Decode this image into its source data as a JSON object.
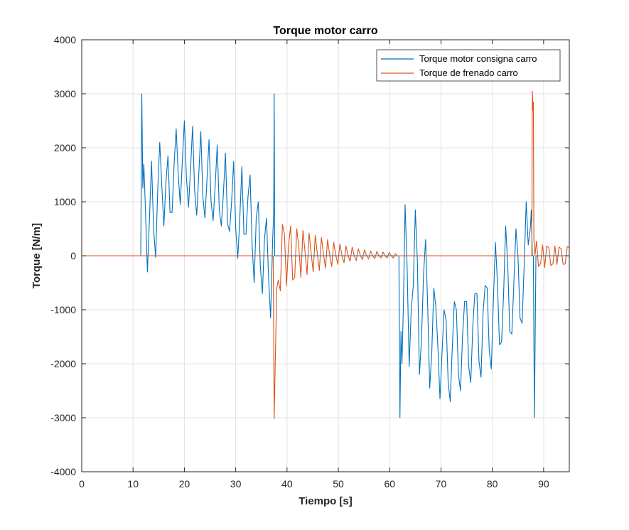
{
  "chart_data": {
    "type": "line",
    "title": "Torque motor carro",
    "xlabel": "Tiempo [s]",
    "ylabel": "Torque [N/m]",
    "xlim": [
      0,
      95
    ],
    "ylim": [
      -4000,
      4000
    ],
    "xticks": [
      0,
      10,
      20,
      30,
      40,
      50,
      60,
      70,
      80,
      90
    ],
    "yticks": [
      -4000,
      -3000,
      -2000,
      -1000,
      0,
      1000,
      2000,
      3000,
      4000
    ],
    "grid": true,
    "legend_position": "top-right",
    "series": [
      {
        "name": "Torque motor consigna carro",
        "color": "#0072BD",
        "x": [
          0,
          11.5,
          11.7,
          11.9,
          12.1,
          12.4,
          12.8,
          13.2,
          13.6,
          14.0,
          14.4,
          14.8,
          15.2,
          15.6,
          16.0,
          16.4,
          16.8,
          17.2,
          17.6,
          18.0,
          18.4,
          18.8,
          19.2,
          19.6,
          20.0,
          20.4,
          20.8,
          21.2,
          21.6,
          22.0,
          22.4,
          22.8,
          23.2,
          23.6,
          24.0,
          24.4,
          24.8,
          25.2,
          25.6,
          26.0,
          26.4,
          26.8,
          27.2,
          27.6,
          28.0,
          28.4,
          28.8,
          29.2,
          29.6,
          30.0,
          30.4,
          30.8,
          31.2,
          31.6,
          32.0,
          32.4,
          32.8,
          33.2,
          33.6,
          34.0,
          34.4,
          34.8,
          35.2,
          35.6,
          36.0,
          36.4,
          36.8,
          37.2,
          37.4,
          37.5,
          37.6,
          37.8,
          38.0,
          45,
          55,
          61.8,
          62.0,
          62.2,
          62.4,
          62.7,
          63.0,
          63.4,
          63.8,
          64.2,
          64.6,
          65.0,
          65.4,
          65.8,
          66.2,
          66.6,
          67.0,
          67.4,
          67.8,
          68.2,
          68.6,
          69.0,
          69.4,
          69.8,
          70.2,
          70.6,
          71.0,
          71.4,
          71.8,
          72.2,
          72.6,
          73.0,
          73.4,
          73.8,
          74.2,
          74.6,
          75.0,
          75.4,
          75.8,
          76.2,
          76.6,
          77.0,
          77.4,
          77.8,
          78.2,
          78.6,
          79.0,
          79.4,
          79.8,
          80.2,
          80.6,
          81.0,
          81.4,
          81.8,
          82.2,
          82.6,
          83.0,
          83.4,
          83.8,
          84.2,
          84.6,
          85.0,
          85.4,
          85.8,
          86.2,
          86.6,
          87.0,
          87.4,
          87.6,
          87.8,
          87.9,
          88.0,
          88.2,
          88.5,
          95
        ],
        "y": [
          0,
          0,
          3000,
          1250,
          1700,
          900,
          -300,
          700,
          1750,
          500,
          -30,
          1200,
          2100,
          1300,
          550,
          1350,
          1850,
          800,
          800,
          1700,
          2350,
          1500,
          950,
          1750,
          2500,
          1450,
          900,
          1600,
          2400,
          1200,
          750,
          1500,
          2300,
          1100,
          700,
          1400,
          2150,
          1000,
          650,
          1300,
          2050,
          850,
          550,
          1150,
          1900,
          600,
          450,
          1000,
          1750,
          500,
          -50,
          700,
          1650,
          400,
          400,
          1100,
          1500,
          200,
          -500,
          700,
          1000,
          -200,
          -700,
          300,
          700,
          -400,
          -1150,
          300,
          800,
          3000,
          0,
          0,
          0,
          0,
          0,
          0,
          -3000,
          -1400,
          -2000,
          -800,
          950,
          -200,
          -2050,
          -1000,
          -550,
          850,
          -100,
          -2200,
          -1550,
          -350,
          300,
          -900,
          -2450,
          -1800,
          -600,
          -950,
          -1700,
          -2650,
          -1800,
          -1000,
          -1200,
          -2350,
          -2700,
          -1700,
          -850,
          -1000,
          -2200,
          -2500,
          -1500,
          -850,
          -850,
          -2050,
          -2350,
          -1300,
          -700,
          -700,
          -1950,
          -2250,
          -1050,
          -550,
          -600,
          -1750,
          -2100,
          -850,
          250,
          -500,
          -1650,
          -1600,
          -700,
          550,
          -150,
          -1400,
          -1450,
          -500,
          500,
          0,
          -1150,
          -1250,
          -200,
          1000,
          200,
          500,
          850,
          0,
          0,
          0,
          -3000,
          0,
          0
        ]
      },
      {
        "name": "Torque de frenado carro",
        "color": "#D95319",
        "x": [
          0,
          37.3,
          37.5,
          37.7,
          38.0,
          38.3,
          38.7,
          39.1,
          39.5,
          39.9,
          40.3,
          40.7,
          41.1,
          41.5,
          41.9,
          42.3,
          42.7,
          43.1,
          43.5,
          43.9,
          44.3,
          44.7,
          45.1,
          45.5,
          45.9,
          46.3,
          46.7,
          47.1,
          47.5,
          47.9,
          48.3,
          48.7,
          49.1,
          49.5,
          49.9,
          50.3,
          50.7,
          51.1,
          51.5,
          51.9,
          52.3,
          52.7,
          53.1,
          53.5,
          53.9,
          54.3,
          54.7,
          55.1,
          55.5,
          55.9,
          56.3,
          56.7,
          57.1,
          57.5,
          57.9,
          58.3,
          58.7,
          59.1,
          59.5,
          59.9,
          60.3,
          60.7,
          61.1,
          61.5,
          62.0,
          87.7,
          87.8,
          87.9,
          88.0,
          88.1,
          88.3,
          88.6,
          89.0,
          89.4,
          89.8,
          90.2,
          90.6,
          91.0,
          91.4,
          91.8,
          92.2,
          92.6,
          93.0,
          93.4,
          93.8,
          94.2,
          94.6,
          95.0
        ],
        "y": [
          0,
          0,
          -3020,
          -2000,
          -600,
          -450,
          -650,
          580,
          400,
          -550,
          200,
          550,
          -450,
          -400,
          500,
          150,
          -400,
          470,
          80,
          -350,
          420,
          50,
          -300,
          380,
          40,
          -270,
          340,
          30,
          -230,
          300,
          20,
          -200,
          250,
          10,
          -160,
          220,
          10,
          -130,
          180,
          0,
          -100,
          160,
          0,
          -90,
          130,
          0,
          -70,
          110,
          0,
          -60,
          90,
          0,
          -50,
          80,
          0,
          -40,
          70,
          0,
          -40,
          60,
          0,
          -40,
          40,
          0,
          0,
          0,
          3050,
          2700,
          2850,
          300,
          0,
          270,
          -200,
          -150,
          200,
          -220,
          180,
          150,
          -180,
          -150,
          180,
          -160,
          160,
          130,
          -160,
          -150,
          170,
          150
        ]
      }
    ]
  }
}
